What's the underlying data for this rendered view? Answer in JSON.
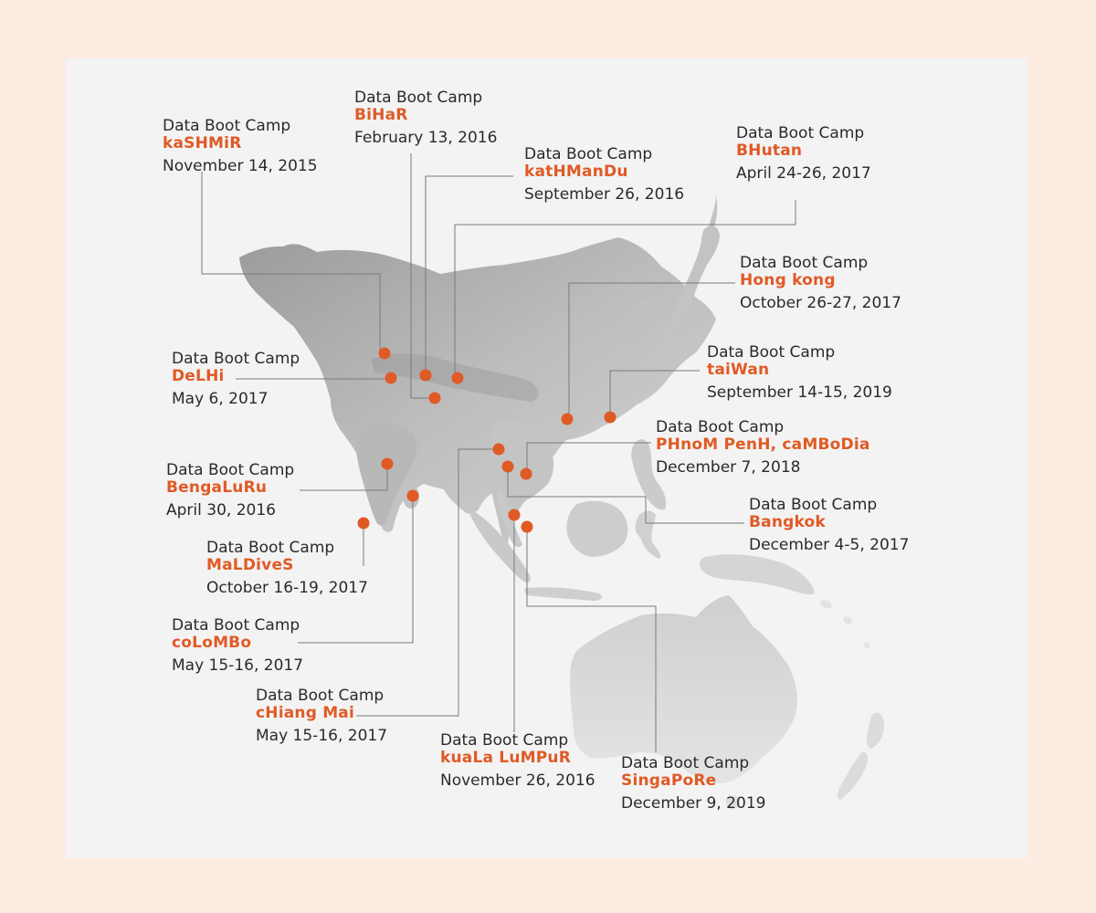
{
  "heading": "Data Boot Camp",
  "accent_color": "#e05a25",
  "camps": [
    {
      "id": "kashmir",
      "city": "kaSHMiR",
      "date": "November 14, 2015"
    },
    {
      "id": "bihar",
      "city": "BiHaR",
      "date": "February 13, 2016"
    },
    {
      "id": "kathmandu",
      "city": "katHManDu",
      "date": "September 26, 2016"
    },
    {
      "id": "bhutan",
      "city": "BHutan",
      "date": "April 24-26, 2017"
    },
    {
      "id": "hong-kong",
      "city": "Hong kong",
      "date": "October 26-27, 2017"
    },
    {
      "id": "delhi",
      "city": "DeLHi",
      "date": "May 6, 2017"
    },
    {
      "id": "taiwan",
      "city": "taiWan",
      "date": "September 14-15, 2019"
    },
    {
      "id": "phnom-penh",
      "city": "PHnoM PenH, caMBoDia",
      "date": "December 7, 2018"
    },
    {
      "id": "bengaluru",
      "city": "BengaLuRu",
      "date": "April 30, 2016"
    },
    {
      "id": "bangkok",
      "city": "Bangkok",
      "date": "December 4-5, 2017"
    },
    {
      "id": "maldives",
      "city": "MaLDiveS",
      "date": "October 16-19, 2017"
    },
    {
      "id": "colombo",
      "city": "coLoMBo",
      "date": "May 15-16, 2017"
    },
    {
      "id": "chiang-mai",
      "city": "cHiang Mai",
      "date": "May 15-16, 2017"
    },
    {
      "id": "kuala-lumpur",
      "city": "kuaLa LuMPuR",
      "date": "November 26, 2016"
    },
    {
      "id": "singapore",
      "city": "SingaPoRe",
      "date": "December 9, 2019"
    }
  ]
}
